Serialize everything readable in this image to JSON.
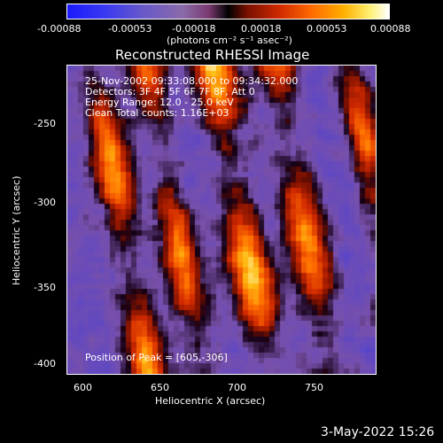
{
  "colorbar": {
    "ticks": [
      "-0.00088",
      "-0.00053",
      "-0.00018",
      "0.00018",
      "0.00053",
      "0.00088"
    ],
    "units_label": "(photons cm⁻² s⁻¹ asec⁻²)"
  },
  "title": "Reconstructed RHESSI Image",
  "info": {
    "line1": "25-Nov-2002 09:33:08.000 to 09:34:32.000",
    "line2": "Detectors: 3F 4F 5F 6F 7F 8F, Att 0",
    "line3": "Energy Range: 12.0 - 25.0 keV",
    "line4": "Clean     Total counts: 1.16E+03",
    "peak": "Position of Peak = [605,-306]"
  },
  "axes": {
    "xlabel": "Heliocentric X (arcsec)",
    "ylabel": "Heliocentric Y (arcsec)",
    "xticks": [
      "600",
      "650",
      "700",
      "750"
    ],
    "yticks": [
      "-250",
      "-300",
      "-350",
      "-400"
    ]
  },
  "footer": {
    "date": "3-May-2022 15:26"
  },
  "chart_data": {
    "type": "heatmap",
    "title": "Reconstructed RHESSI Image",
    "xlabel": "Heliocentric X (arcsec)",
    "ylabel": "Heliocentric Y (arcsec)",
    "xlim": [
      588,
      788
    ],
    "ylim": [
      -405,
      -205
    ],
    "color_range": [
      -0.00088,
      0.00088
    ],
    "colorbar_label": "(photons cm⁻² s⁻¹ asec⁻²)",
    "peak": [
      605,
      -306
    ],
    "colormap": [
      "#1a1aff",
      "#8a6aa8",
      "#000000",
      "#d02a00",
      "#ff6a00",
      "#ffb000",
      "#ffffff"
    ]
  }
}
